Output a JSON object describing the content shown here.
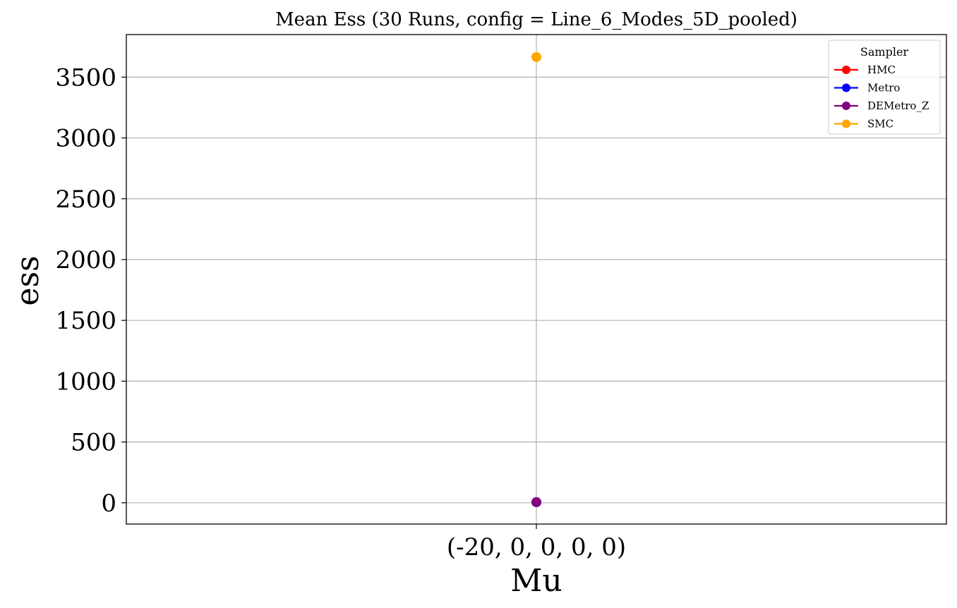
{
  "chart_data": {
    "type": "line",
    "title": "Mean Ess (30 Runs, config = Line_6_Modes_5D_pooled)",
    "xlabel": "Mu",
    "ylabel": "ess",
    "categories": [
      "(-20, 0, 0, 0, 0)"
    ],
    "ylim": [
      -175,
      3850
    ],
    "yticks": [
      0,
      500,
      1000,
      1500,
      2000,
      2500,
      3000,
      3500
    ],
    "grid": true,
    "legend": {
      "title": "Sampler",
      "placement": "top-right"
    },
    "series": [
      {
        "name": "HMC",
        "color": "#ff0000",
        "values": [
          5
        ]
      },
      {
        "name": "Metro",
        "color": "#0000ff",
        "values": [
          5
        ]
      },
      {
        "name": "DEMetro_Z",
        "color": "#800080",
        "values": [
          5
        ]
      },
      {
        "name": "SMC",
        "color": "#ffa500",
        "values": [
          3665
        ]
      }
    ]
  }
}
